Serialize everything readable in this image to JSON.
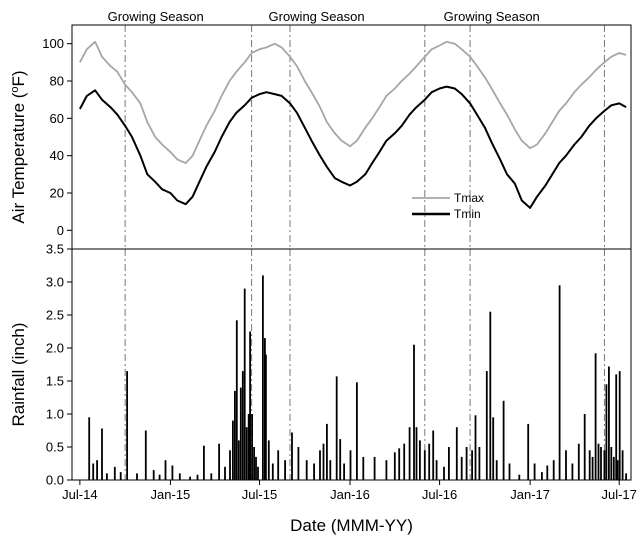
{
  "chart_data": [
    {
      "type": "line",
      "ylabel_main": "Air Temperature (",
      "ylabel_sup": "o",
      "ylabel_end": "F)",
      "ylim": [
        -10,
        110
      ],
      "yticks": [
        0,
        20,
        40,
        60,
        80,
        100
      ],
      "legend_position": "lower-right",
      "season_labels": [
        "Growing Season",
        "Growing Season",
        "Growing Season"
      ],
      "season_label_x": [
        "2014-12-02",
        "2015-10-25",
        "2016-10-15"
      ],
      "season_bounds": [
        "2014-10-01",
        "2015-06-15",
        "2015-09-01",
        "2016-06-01",
        "2016-09-01",
        "2017-06-01"
      ],
      "series": [
        {
          "name": "Tmax",
          "color": "#a6a6a6",
          "points": [
            [
              "2014-07-01",
              90
            ],
            [
              "2014-07-15",
              97
            ],
            [
              "2014-08-01",
              101
            ],
            [
              "2014-08-15",
              93
            ],
            [
              "2014-09-01",
              88
            ],
            [
              "2014-09-15",
              85
            ],
            [
              "2014-10-01",
              78
            ],
            [
              "2014-10-15",
              74
            ],
            [
              "2014-11-01",
              68
            ],
            [
              "2014-11-15",
              58
            ],
            [
              "2014-12-01",
              50
            ],
            [
              "2014-12-15",
              46
            ],
            [
              "2015-01-01",
              42
            ],
            [
              "2015-01-15",
              38
            ],
            [
              "2015-02-01",
              36
            ],
            [
              "2015-02-15",
              40
            ],
            [
              "2015-03-01",
              48
            ],
            [
              "2015-03-15",
              56
            ],
            [
              "2015-04-01",
              64
            ],
            [
              "2015-04-15",
              72
            ],
            [
              "2015-05-01",
              80
            ],
            [
              "2015-05-15",
              85
            ],
            [
              "2015-06-01",
              90
            ],
            [
              "2015-06-15",
              95
            ],
            [
              "2015-07-01",
              97
            ],
            [
              "2015-07-15",
              98
            ],
            [
              "2015-08-01",
              100
            ],
            [
              "2015-08-15",
              98
            ],
            [
              "2015-09-01",
              93
            ],
            [
              "2015-09-15",
              88
            ],
            [
              "2015-10-01",
              80
            ],
            [
              "2015-10-15",
              74
            ],
            [
              "2015-11-01",
              66
            ],
            [
              "2015-11-15",
              58
            ],
            [
              "2015-12-01",
              52
            ],
            [
              "2015-12-15",
              48
            ],
            [
              "2016-01-01",
              45
            ],
            [
              "2016-01-15",
              48
            ],
            [
              "2016-02-01",
              55
            ],
            [
              "2016-02-15",
              60
            ],
            [
              "2016-03-01",
              66
            ],
            [
              "2016-03-15",
              72
            ],
            [
              "2016-04-01",
              76
            ],
            [
              "2016-04-15",
              80
            ],
            [
              "2016-05-01",
              84
            ],
            [
              "2016-05-15",
              88
            ],
            [
              "2016-06-01",
              93
            ],
            [
              "2016-06-15",
              97
            ],
            [
              "2016-07-01",
              99
            ],
            [
              "2016-07-15",
              101
            ],
            [
              "2016-08-01",
              100
            ],
            [
              "2016-08-15",
              97
            ],
            [
              "2016-09-01",
              93
            ],
            [
              "2016-09-15",
              88
            ],
            [
              "2016-10-01",
              82
            ],
            [
              "2016-10-15",
              76
            ],
            [
              "2016-11-01",
              68
            ],
            [
              "2016-11-15",
              62
            ],
            [
              "2016-12-01",
              54
            ],
            [
              "2016-12-15",
              48
            ],
            [
              "2017-01-01",
              44
            ],
            [
              "2017-01-15",
              46
            ],
            [
              "2017-02-01",
              52
            ],
            [
              "2017-02-15",
              58
            ],
            [
              "2017-03-01",
              64
            ],
            [
              "2017-03-15",
              68
            ],
            [
              "2017-04-01",
              74
            ],
            [
              "2017-04-15",
              78
            ],
            [
              "2017-05-01",
              82
            ],
            [
              "2017-05-15",
              86
            ],
            [
              "2017-06-01",
              90
            ],
            [
              "2017-06-15",
              93
            ],
            [
              "2017-07-01",
              95
            ],
            [
              "2017-07-15",
              94
            ]
          ]
        },
        {
          "name": "Tmin",
          "color": "#000000",
          "points": [
            [
              "2014-07-01",
              65
            ],
            [
              "2014-07-15",
              72
            ],
            [
              "2014-08-01",
              75
            ],
            [
              "2014-08-15",
              70
            ],
            [
              "2014-09-01",
              66
            ],
            [
              "2014-09-15",
              62
            ],
            [
              "2014-10-01",
              56
            ],
            [
              "2014-10-15",
              50
            ],
            [
              "2014-11-01",
              40
            ],
            [
              "2014-11-15",
              30
            ],
            [
              "2014-12-01",
              26
            ],
            [
              "2014-12-15",
              22
            ],
            [
              "2015-01-01",
              20
            ],
            [
              "2015-01-15",
              16
            ],
            [
              "2015-02-01",
              14
            ],
            [
              "2015-02-15",
              18
            ],
            [
              "2015-03-01",
              26
            ],
            [
              "2015-03-15",
              34
            ],
            [
              "2015-04-01",
              42
            ],
            [
              "2015-04-15",
              50
            ],
            [
              "2015-05-01",
              58
            ],
            [
              "2015-05-15",
              63
            ],
            [
              "2015-06-01",
              67
            ],
            [
              "2015-06-15",
              71
            ],
            [
              "2015-07-01",
              73
            ],
            [
              "2015-07-15",
              74
            ],
            [
              "2015-08-01",
              73
            ],
            [
              "2015-08-15",
              72
            ],
            [
              "2015-09-01",
              68
            ],
            [
              "2015-09-15",
              63
            ],
            [
              "2015-10-01",
              55
            ],
            [
              "2015-10-15",
              48
            ],
            [
              "2015-11-01",
              40
            ],
            [
              "2015-11-15",
              34
            ],
            [
              "2015-12-01",
              28
            ],
            [
              "2015-12-15",
              26
            ],
            [
              "2016-01-01",
              24
            ],
            [
              "2016-01-15",
              26
            ],
            [
              "2016-02-01",
              30
            ],
            [
              "2016-02-15",
              36
            ],
            [
              "2016-03-01",
              42
            ],
            [
              "2016-03-15",
              48
            ],
            [
              "2016-04-01",
              52
            ],
            [
              "2016-04-15",
              56
            ],
            [
              "2016-05-01",
              62
            ],
            [
              "2016-05-15",
              66
            ],
            [
              "2016-06-01",
              70
            ],
            [
              "2016-06-15",
              74
            ],
            [
              "2016-07-01",
              76
            ],
            [
              "2016-07-15",
              77
            ],
            [
              "2016-08-01",
              76
            ],
            [
              "2016-08-15",
              73
            ],
            [
              "2016-09-01",
              68
            ],
            [
              "2016-09-15",
              62
            ],
            [
              "2016-10-01",
              55
            ],
            [
              "2016-10-15",
              47
            ],
            [
              "2016-11-01",
              38
            ],
            [
              "2016-11-15",
              30
            ],
            [
              "2016-12-01",
              25
            ],
            [
              "2016-12-15",
              16
            ],
            [
              "2017-01-01",
              12
            ],
            [
              "2017-01-15",
              18
            ],
            [
              "2017-02-01",
              24
            ],
            [
              "2017-02-15",
              30
            ],
            [
              "2017-03-01",
              36
            ],
            [
              "2017-03-15",
              40
            ],
            [
              "2017-04-01",
              46
            ],
            [
              "2017-04-15",
              50
            ],
            [
              "2017-05-01",
              56
            ],
            [
              "2017-05-15",
              60
            ],
            [
              "2017-06-01",
              64
            ],
            [
              "2017-06-15",
              67
            ],
            [
              "2017-07-01",
              68
            ],
            [
              "2017-07-15",
              66
            ]
          ]
        }
      ]
    },
    {
      "type": "bar",
      "ylabel": "Rainfall (inch)",
      "xlabel": "Date (MMM-YY)",
      "ylim": [
        0,
        3.5
      ],
      "yticks": [
        "0.0",
        "0.5",
        "1.0",
        "1.5",
        "2.0",
        "2.5",
        "3.0",
        "3.5"
      ],
      "x_ticks": [
        "Jul-14",
        "Jan-15",
        "Jul-15",
        "Jan-16",
        "Jul-16",
        "Jan-17",
        "Jul-17"
      ],
      "x_tick_dates": [
        "2014-07-01",
        "2015-01-01",
        "2015-07-01",
        "2016-01-01",
        "2016-07-01",
        "2017-01-01",
        "2017-07-01"
      ],
      "points": [
        [
          "2014-07-20",
          0.95
        ],
        [
          "2014-07-28",
          0.25
        ],
        [
          "2014-08-05",
          0.3
        ],
        [
          "2014-08-15",
          0.78
        ],
        [
          "2014-08-25",
          0.1
        ],
        [
          "2014-09-10",
          0.2
        ],
        [
          "2014-09-22",
          0.12
        ],
        [
          "2014-10-05",
          1.65
        ],
        [
          "2014-10-25",
          0.1
        ],
        [
          "2014-11-12",
          0.75
        ],
        [
          "2014-11-28",
          0.15
        ],
        [
          "2014-12-10",
          0.08
        ],
        [
          "2014-12-22",
          0.3
        ],
        [
          "2015-01-05",
          0.22
        ],
        [
          "2015-01-20",
          0.1
        ],
        [
          "2015-02-10",
          0.05
        ],
        [
          "2015-02-25",
          0.08
        ],
        [
          "2015-03-10",
          0.52
        ],
        [
          "2015-03-25",
          0.1
        ],
        [
          "2015-04-10",
          0.55
        ],
        [
          "2015-04-22",
          0.2
        ],
        [
          "2015-05-02",
          0.45
        ],
        [
          "2015-05-08",
          0.9
        ],
        [
          "2015-05-12",
          1.35
        ],
        [
          "2015-05-16",
          2.42
        ],
        [
          "2015-05-20",
          0.6
        ],
        [
          "2015-05-24",
          1.4
        ],
        [
          "2015-05-28",
          1.65
        ],
        [
          "2015-06-01",
          2.9
        ],
        [
          "2015-06-05",
          0.8
        ],
        [
          "2015-06-09",
          1.0
        ],
        [
          "2015-06-12",
          2.25
        ],
        [
          "2015-06-16",
          1.0
        ],
        [
          "2015-06-20",
          0.5
        ],
        [
          "2015-06-24",
          0.35
        ],
        [
          "2015-06-28",
          0.2
        ],
        [
          "2015-07-08",
          3.1
        ],
        [
          "2015-07-12",
          2.15
        ],
        [
          "2015-07-14",
          1.9
        ],
        [
          "2015-07-20",
          0.6
        ],
        [
          "2015-07-28",
          0.25
        ],
        [
          "2015-08-08",
          0.45
        ],
        [
          "2015-08-22",
          0.3
        ],
        [
          "2015-09-05",
          0.72
        ],
        [
          "2015-09-18",
          0.5
        ],
        [
          "2015-10-05",
          0.3
        ],
        [
          "2015-10-20",
          0.25
        ],
        [
          "2015-11-01",
          0.45
        ],
        [
          "2015-11-08",
          0.55
        ],
        [
          "2015-11-15",
          0.85
        ],
        [
          "2015-11-22",
          0.3
        ],
        [
          "2015-12-05",
          1.57
        ],
        [
          "2015-12-12",
          0.62
        ],
        [
          "2015-12-20",
          0.25
        ],
        [
          "2016-01-02",
          0.45
        ],
        [
          "2016-01-15",
          1.48
        ],
        [
          "2016-01-28",
          0.35
        ],
        [
          "2016-02-20",
          0.35
        ],
        [
          "2016-03-15",
          0.3
        ],
        [
          "2016-04-01",
          0.42
        ],
        [
          "2016-04-10",
          0.48
        ],
        [
          "2016-04-20",
          0.55
        ],
        [
          "2016-05-01",
          0.8
        ],
        [
          "2016-05-10",
          2.05
        ],
        [
          "2016-05-15",
          0.8
        ],
        [
          "2016-05-22",
          0.6
        ],
        [
          "2016-06-01",
          0.45
        ],
        [
          "2016-06-10",
          0.55
        ],
        [
          "2016-06-18",
          0.75
        ],
        [
          "2016-06-25",
          0.3
        ],
        [
          "2016-07-10",
          0.2
        ],
        [
          "2016-07-20",
          0.5
        ],
        [
          "2016-08-05",
          0.8
        ],
        [
          "2016-08-15",
          0.35
        ],
        [
          "2016-08-25",
          0.5
        ],
        [
          "2016-09-05",
          0.45
        ],
        [
          "2016-09-12",
          0.98
        ],
        [
          "2016-09-20",
          0.5
        ],
        [
          "2016-10-05",
          1.65
        ],
        [
          "2016-10-12",
          2.55
        ],
        [
          "2016-10-18",
          0.95
        ],
        [
          "2016-10-25",
          0.3
        ],
        [
          "2016-11-08",
          1.2
        ],
        [
          "2016-11-20",
          0.25
        ],
        [
          "2016-12-10",
          0.08
        ],
        [
          "2016-12-28",
          0.85
        ],
        [
          "2017-01-10",
          0.25
        ],
        [
          "2017-01-25",
          0.12
        ],
        [
          "2017-02-05",
          0.22
        ],
        [
          "2017-02-18",
          0.3
        ],
        [
          "2017-03-02",
          2.95
        ],
        [
          "2017-03-15",
          0.45
        ],
        [
          "2017-03-28",
          0.25
        ],
        [
          "2017-04-10",
          0.55
        ],
        [
          "2017-04-22",
          1.0
        ],
        [
          "2017-05-02",
          0.45
        ],
        [
          "2017-05-08",
          0.35
        ],
        [
          "2017-05-14",
          1.92
        ],
        [
          "2017-05-20",
          0.55
        ],
        [
          "2017-05-25",
          0.5
        ],
        [
          "2017-06-01",
          0.45
        ],
        [
          "2017-06-05",
          1.45
        ],
        [
          "2017-06-10",
          1.72
        ],
        [
          "2017-06-15",
          0.5
        ],
        [
          "2017-06-20",
          0.35
        ],
        [
          "2017-06-25",
          1.6
        ],
        [
          "2017-06-28",
          0.3
        ],
        [
          "2017-07-02",
          1.65
        ],
        [
          "2017-07-08",
          0.45
        ],
        [
          "2017-07-15",
          0.1
        ]
      ]
    }
  ]
}
